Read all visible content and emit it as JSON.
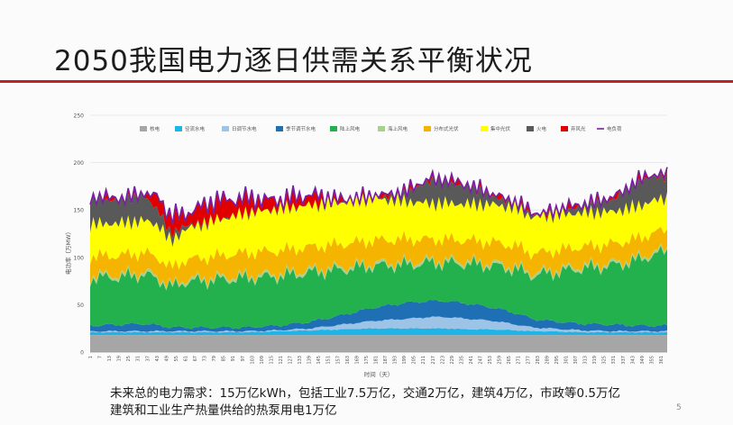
{
  "page": {
    "title": "2050我国电力逐日供需关系平衡状况",
    "caption_line1": "未来总的电力需求：15万亿kWh，包括工业7.5万亿，交通2万亿，建筑4万亿，市政等0.5万亿",
    "caption_line2": "建筑和工业生产热量供给的热泵用电1万亿",
    "page_number": "5"
  },
  "colors": {
    "accent_rule": "#c0202a",
    "nuclear": "#a6a6a6",
    "runofriver_hydro": "#1fb3e6",
    "daily_hydro": "#9dc3e6",
    "seasonal_hydro": "#1f6fb5",
    "onshore_wind": "#22b14c",
    "offshore_wind": "#a9d18e",
    "distributed_pv": "#f5b400",
    "central_pv": "#ffff00",
    "thermal": "#595959",
    "curtailment": "#e00000",
    "load": "#7a1fa2"
  },
  "chart_data": {
    "type": "area",
    "title": "",
    "xlabel": "时间（天）",
    "ylabel": "电功率（万MW）",
    "ylim": [
      0,
      250
    ],
    "yticks": [
      "0",
      "50",
      "100",
      "150",
      "200",
      "250"
    ],
    "xlim": [
      1,
      365
    ],
    "xticks": [
      "1",
      "7",
      "13",
      "19",
      "25",
      "31",
      "37",
      "43",
      "49",
      "55",
      "61",
      "67",
      "73",
      "79",
      "85",
      "91",
      "97",
      "103",
      "109",
      "115",
      "121",
      "127",
      "133",
      "139",
      "145",
      "151",
      "157",
      "163",
      "169",
      "175",
      "181",
      "187",
      "193",
      "199",
      "205",
      "211",
      "217",
      "223",
      "229",
      "235",
      "241",
      "247",
      "253",
      "259",
      "265",
      "271",
      "277",
      "283",
      "289",
      "295",
      "301",
      "307",
      "313",
      "319",
      "325",
      "331",
      "337",
      "343",
      "349",
      "355",
      "361"
    ],
    "grid": true,
    "legend_position": "top",
    "stacked": true,
    "x_days": [
      1,
      20,
      35,
      45,
      52,
      60,
      80,
      100,
      120,
      140,
      160,
      180,
      200,
      215,
      225,
      240,
      255,
      270,
      280,
      290,
      310,
      330,
      345,
      355,
      365
    ],
    "series": [
      {
        "name": "核电",
        "key": "nuclear",
        "kind": "area",
        "values": [
          18,
          18,
          18,
          18,
          18,
          18,
          18,
          18,
          18,
          18,
          18,
          18,
          18,
          18,
          18,
          18,
          18,
          18,
          18,
          18,
          18,
          18,
          18,
          18,
          18
        ]
      },
      {
        "name": "径流水电",
        "key": "runofriver_hydro",
        "kind": "area",
        "values": [
          3,
          3,
          3,
          3,
          3,
          3,
          3,
          3,
          4,
          5,
          6,
          7,
          7,
          7,
          7,
          6,
          6,
          5,
          4,
          4,
          3,
          3,
          3,
          3,
          3
        ]
      },
      {
        "name": "日调节水电",
        "key": "daily_hydro",
        "kind": "area",
        "values": [
          1,
          1,
          1,
          1,
          1,
          1,
          1,
          1,
          1,
          2,
          5,
          8,
          10,
          12,
          12,
          11,
          9,
          6,
          4,
          3,
          2,
          1,
          1,
          1,
          1
        ]
      },
      {
        "name": "季节调节水电",
        "key": "seasonal_hydro",
        "kind": "area",
        "values": [
          6,
          7,
          8,
          6,
          4,
          4,
          4,
          4,
          5,
          7,
          10,
          14,
          17,
          17,
          17,
          16,
          14,
          12,
          9,
          8,
          7,
          7,
          6,
          6,
          6
        ]
      },
      {
        "name": "陆上风电",
        "key": "onshore_wind",
        "kind": "area",
        "values": [
          50,
          50,
          52,
          48,
          42,
          48,
          50,
          52,
          52,
          52,
          48,
          44,
          40,
          40,
          40,
          42,
          44,
          46,
          46,
          50,
          58,
          62,
          68,
          74,
          78
        ]
      },
      {
        "name": "海上风电",
        "key": "offshore_wind",
        "kind": "area",
        "values": [
          3,
          3,
          3,
          3,
          2,
          3,
          3,
          3,
          3,
          3,
          3,
          3,
          3,
          3,
          3,
          3,
          3,
          3,
          3,
          3,
          3,
          3,
          3,
          3,
          3
        ]
      },
      {
        "name": "分布式光伏",
        "key": "distributed_pv",
        "kind": "area",
        "values": [
          20,
          20,
          20,
          20,
          18,
          20,
          22,
          24,
          24,
          24,
          24,
          24,
          24,
          22,
          22,
          22,
          22,
          22,
          20,
          20,
          20,
          20,
          20,
          20,
          20
        ]
      },
      {
        "name": "集中光伏",
        "key": "central_pv",
        "kind": "area",
        "values": [
          34,
          34,
          34,
          34,
          28,
          32,
          38,
          42,
          44,
          44,
          44,
          44,
          40,
          38,
          38,
          38,
          40,
          40,
          38,
          38,
          36,
          34,
          34,
          34,
          34
        ]
      },
      {
        "name": "火电",
        "key": "thermal",
        "kind": "area",
        "values": [
          26,
          24,
          26,
          14,
          8,
          4,
          0,
          0,
          0,
          0,
          0,
          0,
          8,
          24,
          22,
          18,
          8,
          4,
          2,
          2,
          6,
          12,
          24,
          26,
          22
        ]
      },
      {
        "name": "弃风光",
        "key": "curtailment",
        "kind": "area",
        "values": [
          0,
          0,
          0,
          15,
          18,
          12,
          20,
          14,
          8,
          10,
          0,
          0,
          0,
          0,
          0,
          0,
          0,
          0,
          0,
          0,
          0,
          0,
          0,
          0,
          0
        ]
      },
      {
        "name": "电负荷",
        "key": "load",
        "kind": "line",
        "values": [
          170,
          170,
          172,
          165,
          145,
          155,
          160,
          162,
          163,
          163,
          162,
          165,
          170,
          183,
          182,
          178,
          170,
          165,
          145,
          150,
          158,
          165,
          183,
          185,
          187
        ]
      }
    ]
  }
}
